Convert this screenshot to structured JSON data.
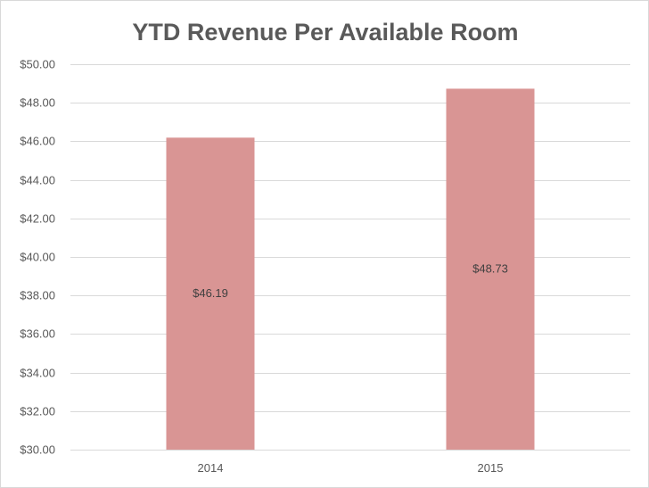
{
  "chart_data": {
    "type": "bar",
    "title": "YTD Revenue Per Available Room",
    "xlabel": "",
    "ylabel": "",
    "categories": [
      "2014",
      "2015"
    ],
    "values": [
      46.19,
      48.73
    ],
    "data_labels": [
      "$46.19",
      "$48.73"
    ],
    "ylim": [
      30,
      50
    ],
    "y_ticks": [
      30,
      32,
      34,
      36,
      38,
      40,
      42,
      44,
      46,
      48,
      50
    ],
    "y_tick_labels": [
      "$30.00",
      "$32.00",
      "$34.00",
      "$36.00",
      "$38.00",
      "$40.00",
      "$42.00",
      "$44.00",
      "$46.00",
      "$48.00",
      "$50.00"
    ],
    "grid": true,
    "legend": "none",
    "colors": {
      "bar": "#d99594",
      "grid": "#d9d9d9",
      "text": "#595959"
    }
  }
}
